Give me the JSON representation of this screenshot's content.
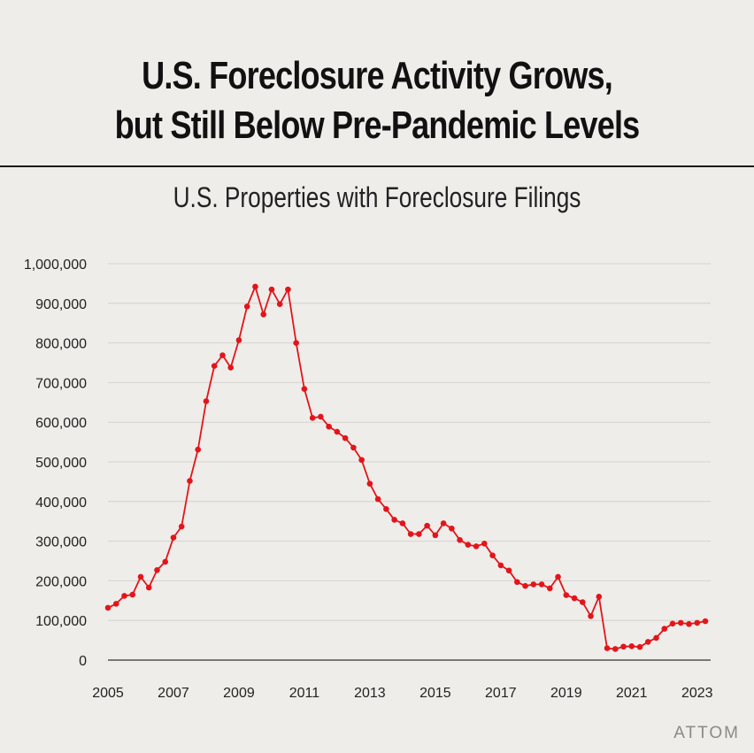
{
  "title": {
    "line1": "U.S. Foreclosure Activity Grows,",
    "line2": "but Still Below Pre-Pandemic Levels"
  },
  "brand": "ATTOM",
  "colors": {
    "series": "#e3151a",
    "grid": "#d4d2ce",
    "axis": "#333333",
    "background": "#efedea"
  },
  "chart_data": {
    "type": "line",
    "title": "U.S. Properties with Foreclosure Filings",
    "xlabel": "",
    "ylabel": "",
    "ylim": [
      0,
      1000000
    ],
    "xlim": [
      2005,
      2023.25
    ],
    "grid": true,
    "y_ticks": [
      {
        "value": 0,
        "label": "0"
      },
      {
        "value": 100000,
        "label": "100,000"
      },
      {
        "value": 200000,
        "label": "200,000"
      },
      {
        "value": 300000,
        "label": "300,000"
      },
      {
        "value": 400000,
        "label": "400,000"
      },
      {
        "value": 500000,
        "label": "500,000"
      },
      {
        "value": 600000,
        "label": "600,000"
      },
      {
        "value": 700000,
        "label": "700,000"
      },
      {
        "value": 800000,
        "label": "800,000"
      },
      {
        "value": 900000,
        "label": "900,000"
      },
      {
        "value": 1000000,
        "label": "1,000,000"
      }
    ],
    "x_ticks": [
      {
        "value": 2005,
        "label": "2005"
      },
      {
        "value": 2007,
        "label": "2007"
      },
      {
        "value": 2009,
        "label": "2009"
      },
      {
        "value": 2011,
        "label": "2011"
      },
      {
        "value": 2013,
        "label": "2013"
      },
      {
        "value": 2015,
        "label": "2015"
      },
      {
        "value": 2017,
        "label": "2017"
      },
      {
        "value": 2019,
        "label": "2019"
      },
      {
        "value": 2021,
        "label": "2021"
      },
      {
        "value": 2023,
        "label": "2023"
      }
    ],
    "series": [
      {
        "name": "U.S. Properties with Foreclosure Filings",
        "x": [
          2005.0,
          2005.25,
          2005.5,
          2005.75,
          2006.0,
          2006.25,
          2006.5,
          2006.75,
          2007.0,
          2007.25,
          2007.5,
          2007.75,
          2008.0,
          2008.25,
          2008.5,
          2008.75,
          2009.0,
          2009.25,
          2009.5,
          2009.75,
          2010.0,
          2010.25,
          2010.5,
          2010.75,
          2011.0,
          2011.25,
          2011.5,
          2011.75,
          2012.0,
          2012.25,
          2012.5,
          2012.75,
          2013.0,
          2013.25,
          2013.5,
          2013.75,
          2014.0,
          2014.25,
          2014.5,
          2014.75,
          2015.0,
          2015.25,
          2015.5,
          2015.75,
          2016.0,
          2016.25,
          2016.5,
          2016.75,
          2017.0,
          2017.25,
          2017.5,
          2017.75,
          2018.0,
          2018.25,
          2018.5,
          2018.75,
          2019.0,
          2019.25,
          2019.5,
          2019.75,
          2020.0,
          2020.25,
          2020.5,
          2020.75,
          2021.0,
          2021.25,
          2021.5,
          2021.75,
          2022.0,
          2022.25,
          2022.5,
          2022.75,
          2023.0,
          2023.25
        ],
        "values": [
          132000,
          142000,
          162000,
          165000,
          210000,
          183000,
          227000,
          248000,
          309000,
          337000,
          452000,
          531000,
          653000,
          742000,
          769000,
          738000,
          807000,
          892000,
          942000,
          872000,
          935000,
          898000,
          935000,
          800000,
          684000,
          611000,
          614000,
          589000,
          576000,
          560000,
          536000,
          505000,
          445000,
          406000,
          381000,
          354000,
          345000,
          318000,
          318000,
          339000,
          315000,
          345000,
          332000,
          303000,
          291000,
          287000,
          294000,
          264000,
          239000,
          226000,
          197000,
          187000,
          191000,
          191000,
          181000,
          210000,
          164000,
          156000,
          146000,
          111000,
          160000,
          30000,
          28000,
          34000,
          35000,
          33000,
          46000,
          56000,
          79000,
          92000,
          94000,
          91000,
          94000,
          98000
        ]
      }
    ]
  }
}
